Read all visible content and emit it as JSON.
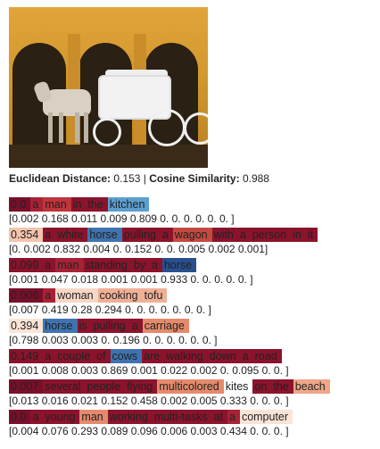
{
  "image": {
    "alt_icon": "horse-carriage-photo"
  },
  "metrics": {
    "euclidean_label": "Euclidean Distance:",
    "euclidean_value": "0.153",
    "separator": "|",
    "cosine_label": "Cosine Similarity:",
    "cosine_value": "0.988"
  },
  "captions": [
    {
      "tokens": [
        {
          "text": "0.0",
          "color": "#7a0f2a"
        },
        {
          "text": "a",
          "color": "#a82236"
        },
        {
          "text": "man",
          "color": "#c0343b"
        },
        {
          "text": "in",
          "color": "#8b132c"
        },
        {
          "text": "the",
          "color": "#8b132c"
        },
        {
          "text": "kitchen",
          "color": "#5b9fcf"
        }
      ],
      "vector": "[0.002 0.168 0.011 0.009 0.809 0. 0. 0. 0. 0. 0. ]"
    },
    {
      "tokens": [
        {
          "text": "0.354",
          "color": "#f4c4ae"
        },
        {
          "text": "a",
          "color": "#8b132c"
        },
        {
          "text": "white",
          "color": "#8b132c"
        },
        {
          "text": "horse",
          "color": "#3f73b0"
        },
        {
          "text": "pulling",
          "color": "#8b132c"
        },
        {
          "text": "a",
          "color": "#8b132c"
        },
        {
          "text": "wagon",
          "color": "#c44a40"
        },
        {
          "text": "with",
          "color": "#8b132c"
        },
        {
          "text": "a",
          "color": "#8b132c"
        },
        {
          "text": "person",
          "color": "#8b132c"
        },
        {
          "text": "in",
          "color": "#8b132c"
        },
        {
          "text": "it",
          "color": "#8b132c"
        }
      ],
      "vector": "[0. 0.002 0.832 0.004 0. 0.152 0. 0. 0.005 0.002 0.001]"
    },
    {
      "tokens": [
        {
          "text": "0.099",
          "color": "#8b132c"
        },
        {
          "text": "a",
          "color": "#8b132c"
        },
        {
          "text": "man",
          "color": "#a82236"
        },
        {
          "text": "standing",
          "color": "#8b132c"
        },
        {
          "text": "by",
          "color": "#8b132c"
        },
        {
          "text": "a",
          "color": "#8b132c"
        },
        {
          "text": "horse",
          "color": "#2a4f8f"
        }
      ],
      "vector": "[0.001 0.047 0.018 0.001 0.001 0.933 0. 0. 0. 0. 0. ]"
    },
    {
      "tokens": [
        {
          "text": "0.006",
          "color": "#7a0f2a"
        },
        {
          "text": "a",
          "color": "#a82236"
        },
        {
          "text": "woman",
          "color": "#f8d7c7"
        },
        {
          "text": "cooking",
          "color": "#f0b096"
        },
        {
          "text": "tofu",
          "color": "#f0b096"
        }
      ],
      "vector": "[0.007 0.419 0.28 0.294 0. 0. 0. 0. 0. 0. 0. ]"
    },
    {
      "tokens": [
        {
          "text": "0.394",
          "color": "#fbe4d6"
        },
        {
          "text": "horse",
          "color": "#3f73b0"
        },
        {
          "text": "is",
          "color": "#8b132c"
        },
        {
          "text": "pulling",
          "color": "#8b132c"
        },
        {
          "text": "a",
          "color": "#8b132c"
        },
        {
          "text": "carriage",
          "color": "#e58a6c"
        }
      ],
      "vector": "[0.798 0.003 0.003 0. 0.196 0. 0. 0. 0. 0. 0. ]"
    },
    {
      "tokens": [
        {
          "text": "0.149",
          "color": "#8b132c"
        },
        {
          "text": "a",
          "color": "#8b132c"
        },
        {
          "text": "couple",
          "color": "#8b132c"
        },
        {
          "text": "of",
          "color": "#8b132c"
        },
        {
          "text": "cows",
          "color": "#3f73b0"
        },
        {
          "text": "are",
          "color": "#8b132c"
        },
        {
          "text": "walking",
          "color": "#8b132c"
        },
        {
          "text": "down",
          "color": "#8b132c"
        },
        {
          "text": "a",
          "color": "#8b132c"
        },
        {
          "text": "road",
          "color": "#8b132c"
        }
      ],
      "vector": "[0.001 0.008 0.003 0.869 0.001 0.022 0.002 0. 0.095 0. 0. ]"
    },
    {
      "tokens": [
        {
          "text": "0.007",
          "color": "#7a0f2a"
        },
        {
          "text": "several",
          "color": "#8b132c"
        },
        {
          "text": "people",
          "color": "#8b132c"
        },
        {
          "text": "flying",
          "color": "#8b132c"
        },
        {
          "text": "multicolored",
          "color": "#e58a6c"
        },
        {
          "text": "kites",
          "color": "#ffffff"
        },
        {
          "text": "on",
          "color": "#8b132c"
        },
        {
          "text": "the",
          "color": "#8b132c"
        },
        {
          "text": "beach",
          "color": "#f0a688"
        }
      ],
      "vector": "[0.013 0.016 0.021 0.152 0.458 0.002 0.005 0.333 0. 0. 0. ]"
    },
    {
      "tokens": [
        {
          "text": "0.0",
          "color": "#7a0f2a"
        },
        {
          "text": "a",
          "color": "#8b132c"
        },
        {
          "text": "young",
          "color": "#8b132c"
        },
        {
          "text": "man",
          "color": "#e58a6c"
        },
        {
          "text": "working",
          "color": "#8b132c"
        },
        {
          "text": "multi-tasks",
          "color": "#8b132c"
        },
        {
          "text": "at",
          "color": "#8b132c"
        },
        {
          "text": "a",
          "color": "#a82236"
        },
        {
          "text": "computer",
          "color": "#fbe4d6"
        }
      ],
      "vector": "[0.004 0.076 0.293 0.089 0.096 0.006 0.003 0.434 0. 0. 0. ]"
    }
  ]
}
